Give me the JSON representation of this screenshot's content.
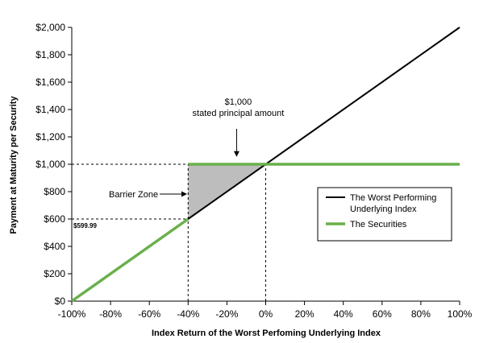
{
  "chart_data": {
    "type": "line",
    "xlabel": "Index Return of the Worst Perfoming Underlying Index",
    "ylabel": "Payment at Maturity per Security",
    "xlim": [
      -100,
      100
    ],
    "ylim": [
      0,
      2000
    ],
    "x_ticks": [
      -100,
      -80,
      -60,
      -40,
      -20,
      0,
      20,
      40,
      60,
      80,
      100
    ],
    "x_tick_labels": [
      "-100%",
      "-80%",
      "-60%",
      "-40%",
      "-20%",
      "0%",
      "20%",
      "40%",
      "60%",
      "80%",
      "100%"
    ],
    "y_ticks": [
      0,
      200,
      400,
      600,
      800,
      1000,
      1200,
      1400,
      1600,
      1800,
      2000
    ],
    "y_tick_labels": [
      "$0",
      "$200",
      "$400",
      "$600",
      "$800",
      "$1,000",
      "$1,200",
      "$1,400",
      "$1,600",
      "$1,800",
      "$2,000"
    ],
    "grid": false,
    "series": [
      {
        "name": "The Worst Performing Underlying Index",
        "color": "#000000",
        "x": [
          -40,
          100
        ],
        "y": [
          600,
          2000
        ]
      },
      {
        "name": "The Securities",
        "color": "#6ab04c",
        "segments": [
          {
            "x": [
              -100,
              -40
            ],
            "y": [
              0,
              600
            ]
          },
          {
            "x": [
              -40,
              100
            ],
            "y": [
              1000,
              1000
            ]
          }
        ]
      }
    ],
    "barrier_zone": {
      "label": "Barrier Zone",
      "fill": "#bdbdbd",
      "polygon": [
        [
          -40,
          600
        ],
        [
          -40,
          1000
        ],
        [
          0,
          1000
        ]
      ]
    },
    "reference_lines": {
      "horizontal": [
        {
          "y": 1000,
          "x_from": -100,
          "x_to": 0
        },
        {
          "y": 600,
          "x_from": -100,
          "x_to": -40
        }
      ],
      "vertical": [
        {
          "x": -40,
          "y_from": 0,
          "y_to": 1000
        },
        {
          "x": 0,
          "y_from": 0,
          "y_to": 1000
        }
      ]
    },
    "annotations": {
      "stated_principal": {
        "line1": "$1,000",
        "line2": "stated principal amount",
        "arrow_target": [
          -15,
          1000
        ]
      },
      "value_label": {
        "text": "$599.99",
        "x": -100,
        "y": 600
      }
    },
    "legend": {
      "placement": "right",
      "entries": [
        {
          "label_line1": "The Worst Performing",
          "label_line2": "Underlying Index",
          "color": "#000000"
        },
        {
          "label_line1": "The Securities",
          "label_line2": "",
          "color": "#6ab04c"
        }
      ]
    }
  }
}
